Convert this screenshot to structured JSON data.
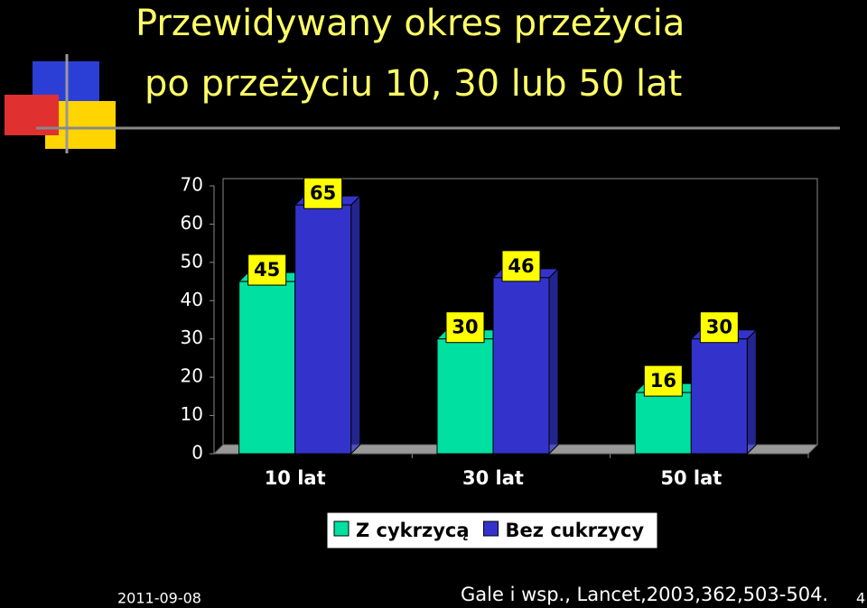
{
  "chart_data": {
    "type": "bar",
    "title": "Przewidywany okres przeżycia",
    "subtitle": "po przeżyciu 10, 30 lub 50 lat",
    "categories": [
      "10 lat",
      "30 lat",
      "50 lat"
    ],
    "series": [
      {
        "name": "Z cykrzycą",
        "color": "#00e0a0",
        "values": [
          45,
          30,
          16
        ]
      },
      {
        "name": "Bez cukrzycy",
        "color": "#3333cc",
        "values": [
          65,
          46,
          30
        ]
      }
    ],
    "ylim": [
      0,
      70
    ],
    "yticks": [
      0,
      10,
      20,
      30,
      40,
      50,
      60,
      70
    ],
    "date": "2011-09-08",
    "source": "Gale i wsp., Lancet,2003,362,503-504.",
    "page_number": "4"
  }
}
